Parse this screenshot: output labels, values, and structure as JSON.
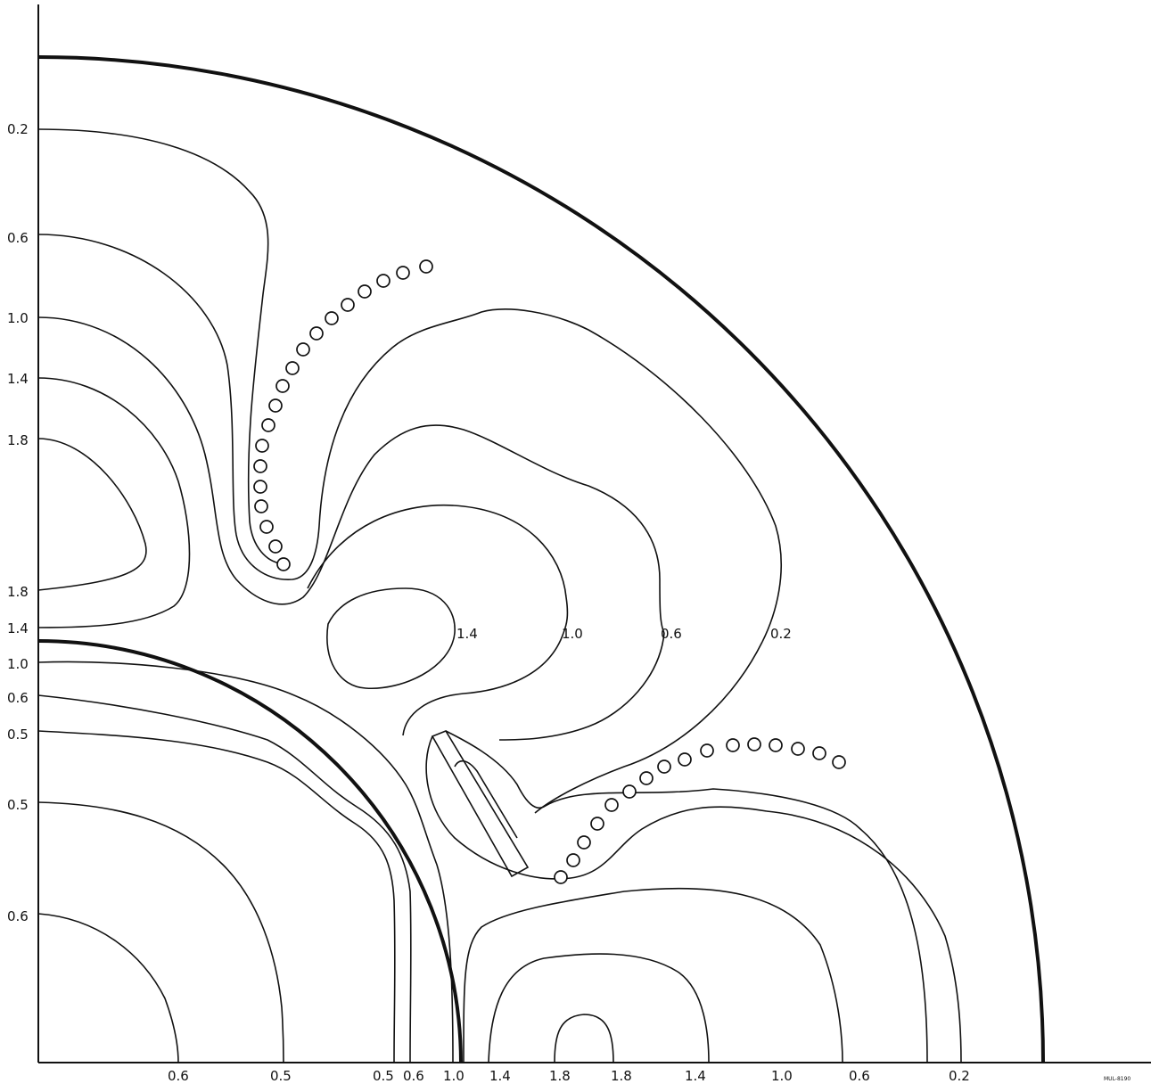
{
  "figure": {
    "left_labels": [
      "0.2",
      "0.6",
      "1.0",
      "1.4",
      "1.8",
      "1.8",
      "1.4",
      "1.0",
      "0.6",
      "0.5",
      "0.5",
      "0.6"
    ],
    "bottom_labels": [
      "0.6",
      "0.5",
      "0.5",
      "0.6",
      "1.0",
      "1.4",
      "1.8",
      "1.8",
      "1.4",
      "1.0",
      "0.6",
      "0.2"
    ],
    "inline_labels": [
      "1.4",
      "1.0",
      "0.6",
      "0.2"
    ],
    "corner_code": "MUL-8190"
  },
  "colors": {
    "line": "#111111",
    "background": "#ffffff"
  }
}
